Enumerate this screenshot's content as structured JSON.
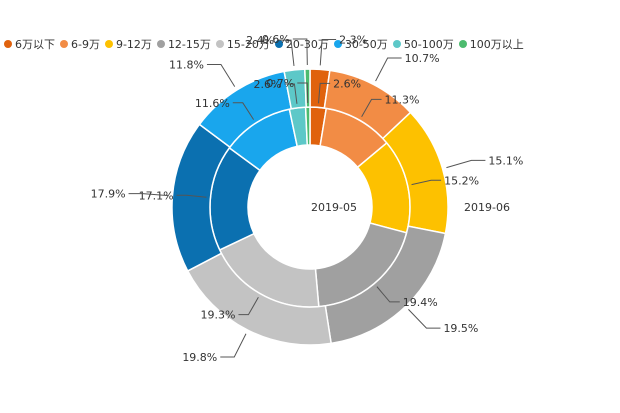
{
  "chart_data": {
    "type": "pie",
    "subtype": "nested-donut",
    "categories": [
      "6万以下",
      "6-9万",
      "9-12万",
      "12-15万",
      "15-20万",
      "20-30万",
      "30-50万",
      "50-100万",
      "100万以上"
    ],
    "colors": [
      "#e0620d",
      "#f28c45",
      "#fdc100",
      "#a0a0a0",
      "#c3c3c3",
      "#0b70b0",
      "#19a6ed",
      "#5dc8c8",
      "#4cbb6e"
    ],
    "series": [
      {
        "name": "2019-05",
        "ring": "inner",
        "values": [
          2.6,
          11.3,
          15.2,
          19.4,
          19.3,
          17.1,
          11.6,
          2.6,
          0.7
        ],
        "labels": [
          "2.6%",
          "11.3%",
          "15.2%",
          "19.4%",
          "19.3%",
          "17.1%",
          "11.6%",
          "2.6%",
          "0.7%"
        ]
      },
      {
        "name": "2019-06",
        "ring": "outer",
        "values": [
          2.3,
          10.7,
          15.1,
          19.5,
          19.8,
          17.9,
          11.8,
          2.4,
          0.6
        ],
        "labels": [
          "2.3%",
          "10.7%",
          "15.1%",
          "19.5%",
          "19.8%",
          "17.9%",
          "11.8%",
          "2.4%",
          "0.6%"
        ]
      }
    ],
    "inner_title": "2019-05",
    "outer_title": "2019-06",
    "legend_position": "top"
  }
}
